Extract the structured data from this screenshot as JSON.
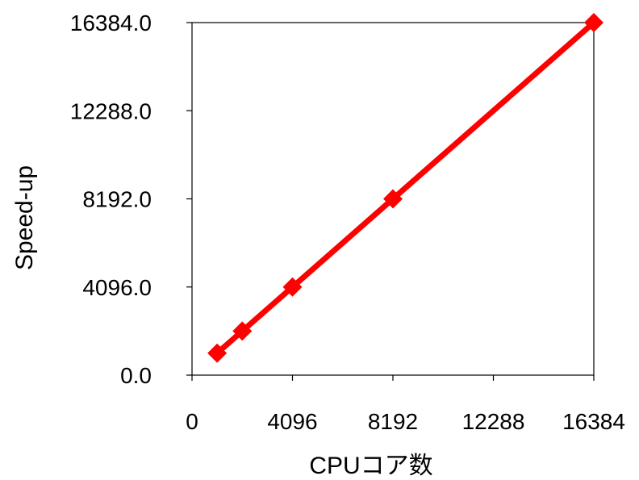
{
  "chart_data": {
    "type": "line",
    "title": "",
    "xlabel": "CPUコア数",
    "ylabel": "Speed-up",
    "xlim": [
      0,
      16384
    ],
    "ylim": [
      0,
      16384
    ],
    "x_ticks": [
      "0",
      "4096",
      "8192",
      "12288",
      "16384"
    ],
    "y_ticks": [
      "0.0",
      "4096.0",
      "8192.0",
      "12288.0",
      "16384.0"
    ],
    "grid": false,
    "legend": "none",
    "series": [
      {
        "color": "#ff0000",
        "marker": "diamond",
        "x": [
          1024,
          2048,
          4096,
          8192,
          16384
        ],
        "y": [
          1024,
          2048,
          4096,
          8192,
          16384
        ]
      }
    ]
  }
}
